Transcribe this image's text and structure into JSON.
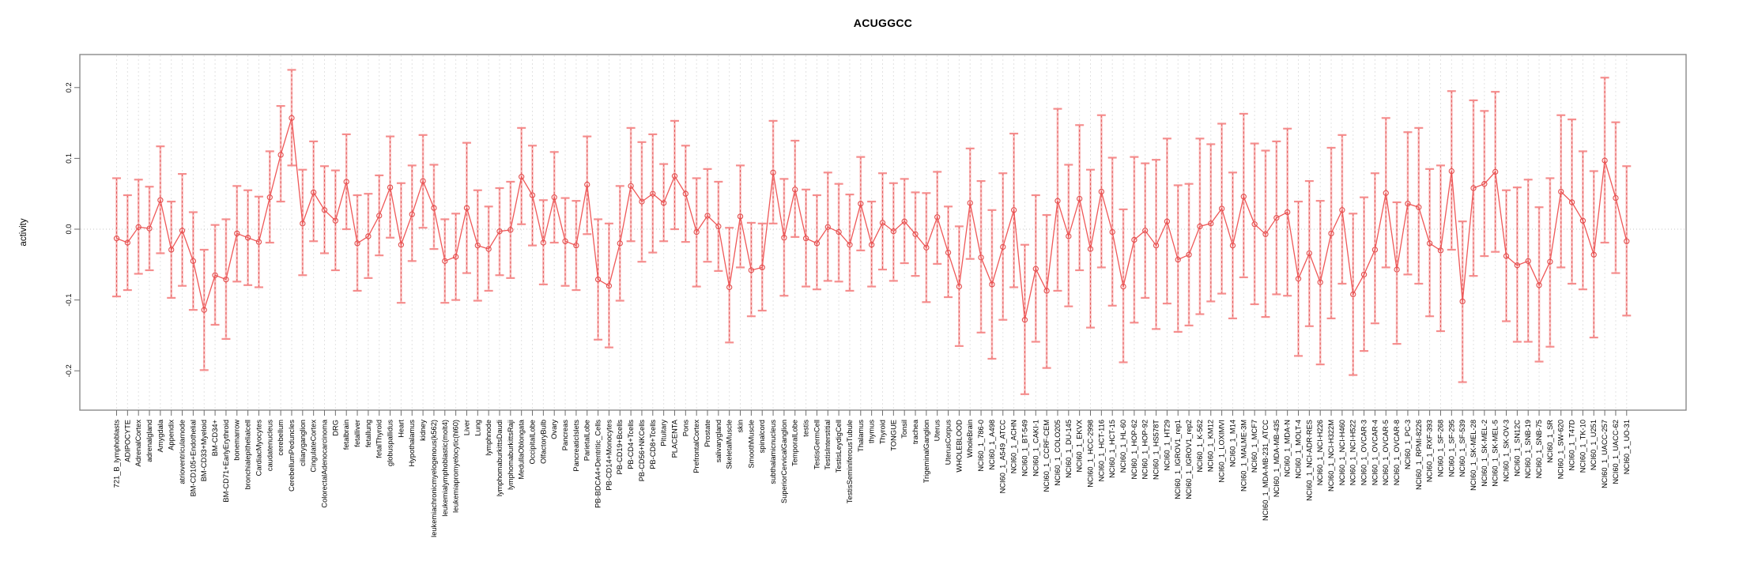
{
  "colors": {
    "grid": "#e2e2e2",
    "zero": "#c4c4c4",
    "axis": "#8a8a8a",
    "tick": "#6e6e6e",
    "text": "#000000",
    "whisker_outer": "#f9a2a2",
    "stem_dashed": "#e05252",
    "cap": "#f58888",
    "series_line": "#ef5858",
    "point": "#e34f4f"
  },
  "chart_data": {
    "type": "line",
    "subtype": "errorbar",
    "title": "ACUGGCC",
    "xlabel": "",
    "ylabel": "activity",
    "ylim": [
      -0.256,
      0.247
    ],
    "yticks": [
      "0.2",
      "0.1",
      "0.0",
      "-0.1",
      "-0.2"
    ],
    "grid": true,
    "legend": "none",
    "categories": [
      "721_B_lymphoblasts",
      "ADIPOCYTE",
      "AdrenalCortex",
      "adrenalgland",
      "Amygdala",
      "Appendix",
      "atrioventricularnode",
      "BM-CD105+Endothelial",
      "BM-CD33+Myeloid",
      "BM-CD34+",
      "BM-CD71+EarlyErythroid",
      "bonemarrow",
      "bronchialepithelialcell",
      "CardiacMyocytes",
      "caudatenucleus",
      "cerebellum",
      "CerebellumPeduncles",
      "ciliaryganglion",
      "CingulateCortex",
      "ColorectalAdenocarcinoma",
      "DRG",
      "fetalbrain",
      "fetalliver",
      "fetallung",
      "fetalThyroid",
      "globuspallidus",
      "Heart",
      "Hypothalamus",
      "kidney",
      "leukemiachronicmyelogenous(k562)",
      "leukemialymphoblastic(molt4)",
      "leukemiapromyelocytic(hl60)",
      "Liver",
      "Lung",
      "lymphnode",
      "lymphomaburkittsDaudi",
      "lymphomaburkittsRaji",
      "MedullaOblongata",
      "OccipitalLobe",
      "OlfactoryBulb",
      "Ovary",
      "Pancreas",
      "PancreaticIslets",
      "ParietalLobe",
      "PB-BDCA4+Dentritic_Cells",
      "PB-CD14+Monocytes",
      "PB-CD19+Bcells",
      "PB-CD4+Tcells",
      "PB-CD56+NKCells",
      "PB-CD8+Tcells",
      "Pituitary",
      "PLACENTA",
      "Pons",
      "PrefrontalCortex",
      "Prostate",
      "salivarygland",
      "SkeletalMuscle",
      "skin",
      "SmoothMuscle",
      "spinalcord",
      "subthalamicnucleus",
      "SuperiorCervicalGanglion",
      "TemporalLobe",
      "testis",
      "TestisGermCell",
      "TestisInterstitial",
      "TestisLeydigCell",
      "TestisSeminiferousTubule",
      "Thalamus",
      "thymus",
      "Thyroid",
      "TONGUE",
      "Tonsil",
      "trachea",
      "TrigeminalGanglion",
      "Uterus",
      "UterusCorpus",
      "WHOLEBLOOD",
      "WholeBrain",
      "NCI60_1_786-0",
      "NCI60_1_A498",
      "NCI60_1_A549_ATCC",
      "NCI60_1_ACHN",
      "NCI60_1_BT-549",
      "NCI60_1_CAKI-1",
      "NCI60_1_CCRF-CEM",
      "NCI60_1_COLO205",
      "NCI60_1_DU-145",
      "NCI60_1_EKVX",
      "NCI60_1_HCC-2998",
      "NCI60_1_HCT-116",
      "NCI60_1_HCT-15",
      "NCI60_1_HL-60",
      "NCI60_1_HOP-62",
      "NCI60_1_HOP-92",
      "NCI60_1_HS578T",
      "NCI60_1_HT29",
      "NCI60_1_IGROV1_rep1",
      "NCI60_1_IGROV1_rep2",
      "NCI60_1_K-562",
      "NCI60_1_KM12",
      "NCI60_1_LOXIMVI",
      "NCI60_1_M14",
      "NCI60_1_MALME-3M",
      "NCI60_1_MCF7",
      "NCI60_1_MDA-MB-231_ATCC",
      "NCI60_1_MDA-MB-435",
      "NCI60_1_MDA-N",
      "NCI60_1_MOLT-4",
      "NCI60_1_NCI-ADR-RES",
      "NCI60_1_NCI-H226",
      "NCI60_1_NCI-H322M",
      "NCI60_1_NCI-H460",
      "NCI60_1_NCI-H522",
      "NCI60_1_OVCAR-3",
      "NCI60_1_OVCAR-4",
      "NCI60_1_OVCAR-5",
      "NCI60_1_OVCAR-8",
      "NCI60_1_PC-3",
      "NCI60_1_RPMI-8226",
      "NCI60_1_RXF-393",
      "NCI60_1_SF-268",
      "NCI60_1_SF-295",
      "NCI60_1_SF-539",
      "NCI60_1_SK-MEL-28",
      "NCI60_1_SK-MEL-2",
      "NCI60_1_SK-MEL-5",
      "NCI60_1_SK-OV-3",
      "NCI60_1_SN12C",
      "NCI60_1_SNB-19",
      "NCI60_1_SNB-75",
      "NCI60_1_SR",
      "NCI60_1_SW-620",
      "NCI60_1_T47D",
      "NCI60_1_TK-10",
      "NCI60_1_U251",
      "NCI60_1_UACC-257",
      "NCI60_1_UACC-62",
      "NCI60_1_UO-31"
    ],
    "series": [
      {
        "name": "activity",
        "values": [
          -0.013,
          -0.019,
          0.003,
          0.001,
          0.041,
          -0.029,
          -0.002,
          -0.045,
          -0.114,
          -0.065,
          -0.071,
          -0.006,
          -0.012,
          -0.018,
          0.045,
          0.105,
          0.157,
          0.008,
          0.052,
          0.027,
          0.012,
          0.067,
          -0.02,
          -0.01,
          0.019,
          0.059,
          -0.022,
          0.021,
          0.068,
          0.03,
          -0.045,
          -0.039,
          0.03,
          -0.023,
          -0.028,
          -0.003,
          -0.001,
          0.074,
          0.048,
          -0.019,
          0.045,
          -0.017,
          -0.023,
          0.063,
          -0.071,
          -0.08,
          -0.02,
          0.061,
          0.039,
          0.05,
          0.037,
          0.075,
          0.05,
          -0.004,
          0.019,
          0.004,
          -0.082,
          0.018,
          -0.058,
          -0.054,
          0.08,
          -0.012,
          0.056,
          -0.013,
          -0.02,
          0.003,
          -0.004,
          -0.022,
          0.036,
          -0.022,
          0.009,
          -0.003,
          0.011,
          -0.007,
          -0.026,
          0.017,
          -0.033,
          -0.081,
          0.037,
          -0.04,
          -0.078,
          -0.025,
          0.027,
          -0.128,
          -0.056,
          -0.087,
          0.04,
          -0.01,
          0.043,
          -0.028,
          0.053,
          -0.004,
          -0.081,
          -0.015,
          -0.002,
          -0.023,
          0.011,
          -0.043,
          -0.036,
          0.004,
          0.008,
          0.029,
          -0.023,
          0.046,
          0.007,
          -0.007,
          0.016,
          0.024,
          -0.07,
          -0.034,
          -0.075,
          -0.006,
          0.027,
          -0.092,
          -0.064,
          -0.029,
          0.051,
          -0.057,
          0.036,
          0.031,
          -0.02,
          -0.03,
          0.082,
          -0.102,
          0.058,
          0.064,
          0.081,
          -0.038,
          -0.051,
          -0.045,
          -0.079,
          -0.046,
          0.053,
          0.038,
          0.012,
          -0.036,
          0.097,
          0.044,
          -0.017
        ],
        "lower": [
          -0.095,
          -0.086,
          -0.063,
          -0.058,
          -0.034,
          -0.097,
          -0.08,
          -0.114,
          -0.199,
          -0.135,
          -0.155,
          -0.074,
          -0.079,
          -0.082,
          -0.019,
          0.039,
          0.09,
          -0.065,
          -0.017,
          -0.034,
          -0.058,
          0.0,
          -0.087,
          -0.069,
          -0.037,
          -0.012,
          -0.104,
          -0.045,
          0.002,
          -0.028,
          -0.104,
          -0.1,
          -0.062,
          -0.101,
          -0.087,
          -0.065,
          -0.069,
          0.007,
          -0.023,
          -0.078,
          -0.019,
          -0.08,
          -0.086,
          -0.007,
          -0.156,
          -0.167,
          -0.101,
          -0.017,
          -0.046,
          -0.033,
          -0.017,
          0.0,
          -0.018,
          -0.081,
          -0.046,
          -0.059,
          -0.16,
          -0.054,
          -0.123,
          -0.115,
          0.008,
          -0.094,
          -0.011,
          -0.081,
          -0.085,
          -0.073,
          -0.074,
          -0.087,
          -0.03,
          -0.081,
          -0.057,
          -0.073,
          -0.048,
          -0.066,
          -0.103,
          -0.049,
          -0.096,
          -0.165,
          -0.042,
          -0.146,
          -0.183,
          -0.128,
          -0.082,
          -0.233,
          -0.159,
          -0.196,
          -0.087,
          -0.109,
          -0.058,
          -0.139,
          -0.054,
          -0.108,
          -0.188,
          -0.132,
          -0.097,
          -0.141,
          -0.105,
          -0.145,
          -0.136,
          -0.12,
          -0.102,
          -0.091,
          -0.126,
          -0.068,
          -0.106,
          -0.124,
          -0.092,
          -0.094,
          -0.179,
          -0.137,
          -0.191,
          -0.126,
          -0.077,
          -0.206,
          -0.172,
          -0.133,
          -0.054,
          -0.162,
          -0.064,
          -0.077,
          -0.123,
          -0.144,
          -0.029,
          -0.216,
          -0.066,
          -0.038,
          -0.032,
          -0.13,
          -0.159,
          -0.159,
          -0.187,
          -0.166,
          -0.054,
          -0.077,
          -0.085,
          -0.153,
          -0.019,
          -0.062,
          -0.122
        ],
        "upper": [
          0.072,
          0.048,
          0.07,
          0.06,
          0.117,
          0.039,
          0.078,
          0.024,
          -0.029,
          0.006,
          0.014,
          0.061,
          0.055,
          0.046,
          0.11,
          0.174,
          0.225,
          0.084,
          0.124,
          0.089,
          0.083,
          0.134,
          0.048,
          0.05,
          0.076,
          0.131,
          0.065,
          0.09,
          0.133,
          0.091,
          0.014,
          0.022,
          0.122,
          0.055,
          0.032,
          0.058,
          0.067,
          0.143,
          0.118,
          0.041,
          0.109,
          0.044,
          0.04,
          0.131,
          0.014,
          0.008,
          0.061,
          0.143,
          0.123,
          0.134,
          0.092,
          0.153,
          0.118,
          0.072,
          0.085,
          0.067,
          0.002,
          0.09,
          0.009,
          0.008,
          0.153,
          0.071,
          0.125,
          0.056,
          0.048,
          0.08,
          0.064,
          0.049,
          0.102,
          0.039,
          0.079,
          0.065,
          0.071,
          0.052,
          0.051,
          0.081,
          0.032,
          0.004,
          0.114,
          0.068,
          0.027,
          0.079,
          0.135,
          -0.022,
          0.048,
          0.02,
          0.17,
          0.091,
          0.147,
          0.084,
          0.161,
          0.101,
          0.028,
          0.102,
          0.093,
          0.098,
          0.128,
          0.062,
          0.064,
          0.128,
          0.12,
          0.149,
          0.08,
          0.163,
          0.121,
          0.111,
          0.124,
          0.142,
          0.039,
          0.068,
          0.04,
          0.115,
          0.133,
          0.022,
          0.045,
          0.079,
          0.157,
          0.038,
          0.137,
          0.143,
          0.085,
          0.09,
          0.195,
          0.011,
          0.182,
          0.167,
          0.194,
          0.055,
          0.059,
          0.07,
          0.031,
          0.072,
          0.161,
          0.155,
          0.11,
          0.082,
          0.214,
          0.151,
          0.089
        ]
      }
    ]
  }
}
